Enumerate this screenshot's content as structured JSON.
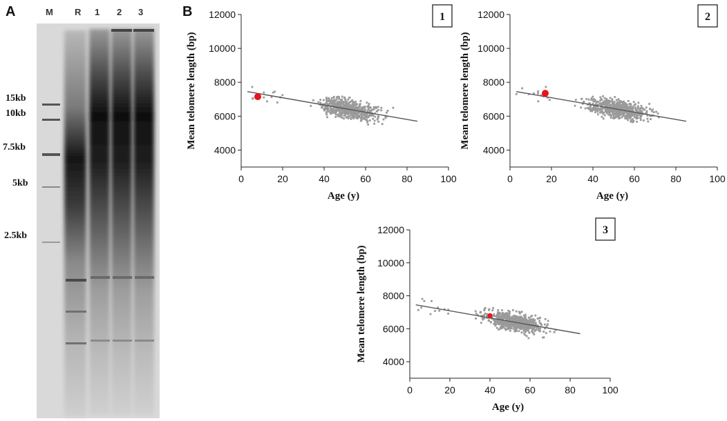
{
  "panels": {
    "a": "A",
    "b": "B"
  },
  "gel": {
    "lanes": [
      "M",
      "R",
      "1",
      "2",
      "3"
    ],
    "size_markers": [
      "15kb",
      "10kb",
      "7.5kb",
      "5kb",
      "2.5kb"
    ]
  },
  "colors": {
    "point": "#9a9a9a",
    "highlight": "#e8141b",
    "line": "#555555"
  },
  "chart_data": [
    {
      "type": "scatter",
      "label": "1",
      "xlabel": "Age (y)",
      "ylabel": "Mean telomere length (bp)",
      "xlim": [
        0,
        100
      ],
      "ylim": [
        3000,
        12000
      ],
      "xticks": [
        "0",
        "20",
        "40",
        "60",
        "80",
        "100"
      ],
      "yticks": [
        "4000",
        "6000",
        "8000",
        "10000",
        "12000"
      ],
      "trend": {
        "x": [
          3,
          85
        ],
        "y": [
          7450,
          5700
        ]
      },
      "highlight": {
        "x": 8,
        "y": 7150
      }
    },
    {
      "type": "scatter",
      "label": "2",
      "xlabel": "Age (y)",
      "ylabel": "Mean telomere length (bp)",
      "xlim": [
        0,
        100
      ],
      "ylim": [
        3000,
        12000
      ],
      "xticks": [
        "0",
        "20",
        "40",
        "60",
        "80",
        "100"
      ],
      "yticks": [
        "4000",
        "6000",
        "8000",
        "10000",
        "12000"
      ],
      "trend": {
        "x": [
          3,
          85
        ],
        "y": [
          7450,
          5700
        ]
      },
      "highlight": {
        "x": 17,
        "y": 7350
      }
    },
    {
      "type": "scatter",
      "label": "3",
      "xlabel": "Age (y)",
      "ylabel": "Mean telomere length (bp)",
      "xlim": [
        0,
        100
      ],
      "ylim": [
        3000,
        12000
      ],
      "xticks": [
        "0",
        "20",
        "40",
        "60",
        "80",
        "100"
      ],
      "yticks": [
        "4000",
        "6000",
        "8000",
        "10000",
        "12000"
      ],
      "trend": {
        "x": [
          3,
          85
        ],
        "y": [
          7450,
          5700
        ]
      },
      "highlight": {
        "x": 40,
        "y": 6800
      }
    }
  ]
}
